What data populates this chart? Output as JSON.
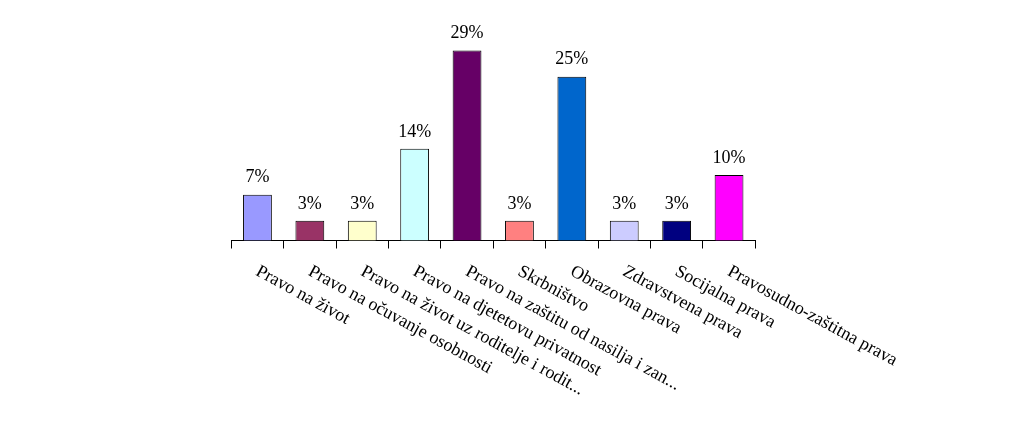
{
  "chart_data": {
    "type": "bar",
    "categories": [
      "Pravo na život",
      "Pravo na očuvanje osobnosti",
      "Pravo na život uz roditelje i rodit...",
      "Pravo na djetetovu privatnost",
      "Pravo na zaštitu od nasilja i zan...",
      "Skrbništvo",
      "Obrazovna prava",
      "Zdravstvena prava",
      "Socijalna prava",
      "Pravosudno-zaštitna prava"
    ],
    "values": [
      7,
      3,
      3,
      14,
      29,
      3,
      25,
      3,
      3,
      10
    ],
    "value_labels": [
      "7%",
      "3%",
      "3%",
      "14%",
      "29%",
      "3%",
      "25%",
      "3%",
      "3%",
      "10%"
    ],
    "colors": [
      "#9999ff",
      "#993366",
      "#ffffcc",
      "#ccffff",
      "#660066",
      "#ff8080",
      "#0066cc",
      "#ccccff",
      "#000080",
      "#ff00ff"
    ],
    "legend": false,
    "grid": false
  }
}
